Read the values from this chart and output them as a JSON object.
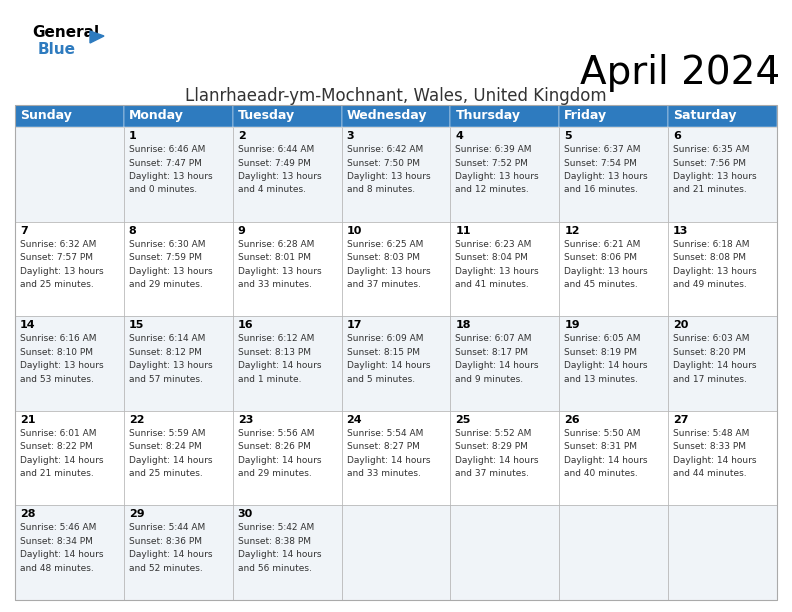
{
  "title": "April 2024",
  "subtitle": "Llanrhaeadr-ym-Mochnant, Wales, United Kingdom",
  "header_color": "#2E7BBF",
  "header_text_color": "#FFFFFF",
  "bg_color": "#FFFFFF",
  "alt_row_color": "#F0F4F8",
  "days_of_week": [
    "Sunday",
    "Monday",
    "Tuesday",
    "Wednesday",
    "Thursday",
    "Friday",
    "Saturday"
  ],
  "weeks": [
    [
      {
        "day": null,
        "info": null
      },
      {
        "day": 1,
        "info": [
          "Sunrise: 6:46 AM",
          "Sunset: 7:47 PM",
          "Daylight: 13 hours",
          "and 0 minutes."
        ]
      },
      {
        "day": 2,
        "info": [
          "Sunrise: 6:44 AM",
          "Sunset: 7:49 PM",
          "Daylight: 13 hours",
          "and 4 minutes."
        ]
      },
      {
        "day": 3,
        "info": [
          "Sunrise: 6:42 AM",
          "Sunset: 7:50 PM",
          "Daylight: 13 hours",
          "and 8 minutes."
        ]
      },
      {
        "day": 4,
        "info": [
          "Sunrise: 6:39 AM",
          "Sunset: 7:52 PM",
          "Daylight: 13 hours",
          "and 12 minutes."
        ]
      },
      {
        "day": 5,
        "info": [
          "Sunrise: 6:37 AM",
          "Sunset: 7:54 PM",
          "Daylight: 13 hours",
          "and 16 minutes."
        ]
      },
      {
        "day": 6,
        "info": [
          "Sunrise: 6:35 AM",
          "Sunset: 7:56 PM",
          "Daylight: 13 hours",
          "and 21 minutes."
        ]
      }
    ],
    [
      {
        "day": 7,
        "info": [
          "Sunrise: 6:32 AM",
          "Sunset: 7:57 PM",
          "Daylight: 13 hours",
          "and 25 minutes."
        ]
      },
      {
        "day": 8,
        "info": [
          "Sunrise: 6:30 AM",
          "Sunset: 7:59 PM",
          "Daylight: 13 hours",
          "and 29 minutes."
        ]
      },
      {
        "day": 9,
        "info": [
          "Sunrise: 6:28 AM",
          "Sunset: 8:01 PM",
          "Daylight: 13 hours",
          "and 33 minutes."
        ]
      },
      {
        "day": 10,
        "info": [
          "Sunrise: 6:25 AM",
          "Sunset: 8:03 PM",
          "Daylight: 13 hours",
          "and 37 minutes."
        ]
      },
      {
        "day": 11,
        "info": [
          "Sunrise: 6:23 AM",
          "Sunset: 8:04 PM",
          "Daylight: 13 hours",
          "and 41 minutes."
        ]
      },
      {
        "day": 12,
        "info": [
          "Sunrise: 6:21 AM",
          "Sunset: 8:06 PM",
          "Daylight: 13 hours",
          "and 45 minutes."
        ]
      },
      {
        "day": 13,
        "info": [
          "Sunrise: 6:18 AM",
          "Sunset: 8:08 PM",
          "Daylight: 13 hours",
          "and 49 minutes."
        ]
      }
    ],
    [
      {
        "day": 14,
        "info": [
          "Sunrise: 6:16 AM",
          "Sunset: 8:10 PM",
          "Daylight: 13 hours",
          "and 53 minutes."
        ]
      },
      {
        "day": 15,
        "info": [
          "Sunrise: 6:14 AM",
          "Sunset: 8:12 PM",
          "Daylight: 13 hours",
          "and 57 minutes."
        ]
      },
      {
        "day": 16,
        "info": [
          "Sunrise: 6:12 AM",
          "Sunset: 8:13 PM",
          "Daylight: 14 hours",
          "and 1 minute."
        ]
      },
      {
        "day": 17,
        "info": [
          "Sunrise: 6:09 AM",
          "Sunset: 8:15 PM",
          "Daylight: 14 hours",
          "and 5 minutes."
        ]
      },
      {
        "day": 18,
        "info": [
          "Sunrise: 6:07 AM",
          "Sunset: 8:17 PM",
          "Daylight: 14 hours",
          "and 9 minutes."
        ]
      },
      {
        "day": 19,
        "info": [
          "Sunrise: 6:05 AM",
          "Sunset: 8:19 PM",
          "Daylight: 14 hours",
          "and 13 minutes."
        ]
      },
      {
        "day": 20,
        "info": [
          "Sunrise: 6:03 AM",
          "Sunset: 8:20 PM",
          "Daylight: 14 hours",
          "and 17 minutes."
        ]
      }
    ],
    [
      {
        "day": 21,
        "info": [
          "Sunrise: 6:01 AM",
          "Sunset: 8:22 PM",
          "Daylight: 14 hours",
          "and 21 minutes."
        ]
      },
      {
        "day": 22,
        "info": [
          "Sunrise: 5:59 AM",
          "Sunset: 8:24 PM",
          "Daylight: 14 hours",
          "and 25 minutes."
        ]
      },
      {
        "day": 23,
        "info": [
          "Sunrise: 5:56 AM",
          "Sunset: 8:26 PM",
          "Daylight: 14 hours",
          "and 29 minutes."
        ]
      },
      {
        "day": 24,
        "info": [
          "Sunrise: 5:54 AM",
          "Sunset: 8:27 PM",
          "Daylight: 14 hours",
          "and 33 minutes."
        ]
      },
      {
        "day": 25,
        "info": [
          "Sunrise: 5:52 AM",
          "Sunset: 8:29 PM",
          "Daylight: 14 hours",
          "and 37 minutes."
        ]
      },
      {
        "day": 26,
        "info": [
          "Sunrise: 5:50 AM",
          "Sunset: 8:31 PM",
          "Daylight: 14 hours",
          "and 40 minutes."
        ]
      },
      {
        "day": 27,
        "info": [
          "Sunrise: 5:48 AM",
          "Sunset: 8:33 PM",
          "Daylight: 14 hours",
          "and 44 minutes."
        ]
      }
    ],
    [
      {
        "day": 28,
        "info": [
          "Sunrise: 5:46 AM",
          "Sunset: 8:34 PM",
          "Daylight: 14 hours",
          "and 48 minutes."
        ]
      },
      {
        "day": 29,
        "info": [
          "Sunrise: 5:44 AM",
          "Sunset: 8:36 PM",
          "Daylight: 14 hours",
          "and 52 minutes."
        ]
      },
      {
        "day": 30,
        "info": [
          "Sunrise: 5:42 AM",
          "Sunset: 8:38 PM",
          "Daylight: 14 hours",
          "and 56 minutes."
        ]
      },
      {
        "day": null,
        "info": null
      },
      {
        "day": null,
        "info": null
      },
      {
        "day": null,
        "info": null
      },
      {
        "day": null,
        "info": null
      }
    ]
  ],
  "cell_border_color": "#AAAAAA",
  "title_fontsize": 28,
  "subtitle_fontsize": 12,
  "header_fontsize": 9,
  "day_num_fontsize": 8,
  "info_fontsize": 6.5
}
